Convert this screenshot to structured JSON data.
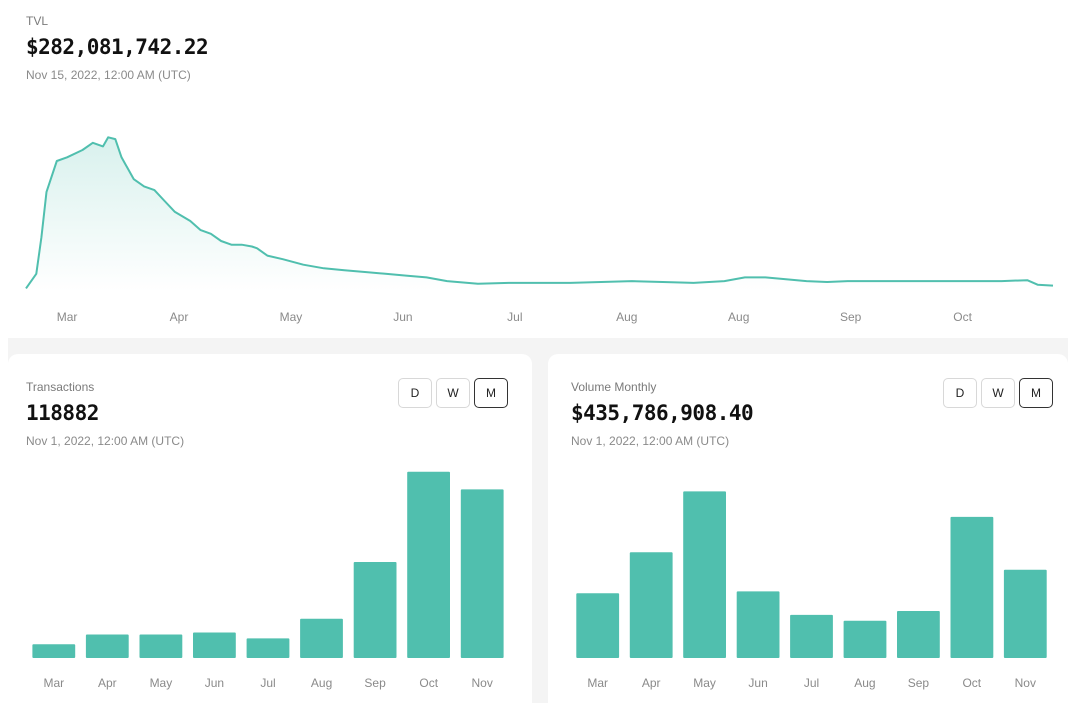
{
  "colors": {
    "accent": "#50bfae",
    "background": "#ffffff",
    "panel_bg": "#f4f4f4"
  },
  "tvl": {
    "label": "TVL",
    "value": "$282,081,742.22",
    "date": "Nov 15, 2022, 12:00 AM (UTC)"
  },
  "transactions": {
    "label": "Transactions",
    "value": "118882",
    "date": "Nov 1, 2022, 12:00 AM (UTC)",
    "buttons": [
      "D",
      "W",
      "M"
    ],
    "active_button": "M"
  },
  "volume": {
    "label": "Volume Monthly",
    "value": "$435,786,908.40",
    "date": "Nov 1, 2022, 12:00 AM (UTC)",
    "buttons": [
      "D",
      "W",
      "M"
    ],
    "active_button": "M"
  },
  "chart_data": [
    {
      "type": "area",
      "series_key": "tvl",
      "x_ticks": [
        "Mar",
        "Apr",
        "May",
        "Jun",
        "Jul",
        "Aug",
        "Aug",
        "Sep",
        "Oct"
      ],
      "y_range": [
        0,
        1
      ],
      "grid": false,
      "points": [
        [
          0,
          0.02
        ],
        [
          0.01,
          0.1
        ],
        [
          0.015,
          0.3
        ],
        [
          0.02,
          0.55
        ],
        [
          0.03,
          0.72
        ],
        [
          0.04,
          0.74
        ],
        [
          0.055,
          0.78
        ],
        [
          0.065,
          0.82
        ],
        [
          0.075,
          0.8
        ],
        [
          0.08,
          0.85
        ],
        [
          0.087,
          0.84
        ],
        [
          0.093,
          0.74
        ],
        [
          0.097,
          0.7
        ],
        [
          0.105,
          0.62
        ],
        [
          0.115,
          0.58
        ],
        [
          0.125,
          0.56
        ],
        [
          0.135,
          0.5
        ],
        [
          0.145,
          0.44
        ],
        [
          0.16,
          0.39
        ],
        [
          0.17,
          0.34
        ],
        [
          0.18,
          0.32
        ],
        [
          0.19,
          0.28
        ],
        [
          0.2,
          0.26
        ],
        [
          0.21,
          0.26
        ],
        [
          0.22,
          0.25
        ],
        [
          0.225,
          0.24
        ],
        [
          0.235,
          0.2
        ],
        [
          0.25,
          0.18
        ],
        [
          0.27,
          0.15
        ],
        [
          0.29,
          0.13
        ],
        [
          0.31,
          0.12
        ],
        [
          0.33,
          0.11
        ],
        [
          0.35,
          0.1
        ],
        [
          0.37,
          0.09
        ],
        [
          0.39,
          0.08
        ],
        [
          0.41,
          0.06
        ],
        [
          0.44,
          0.045
        ],
        [
          0.47,
          0.05
        ],
        [
          0.5,
          0.05
        ],
        [
          0.53,
          0.05
        ],
        [
          0.56,
          0.055
        ],
        [
          0.59,
          0.06
        ],
        [
          0.62,
          0.055
        ],
        [
          0.65,
          0.05
        ],
        [
          0.68,
          0.06
        ],
        [
          0.7,
          0.08
        ],
        [
          0.72,
          0.08
        ],
        [
          0.74,
          0.07
        ],
        [
          0.76,
          0.06
        ],
        [
          0.78,
          0.055
        ],
        [
          0.8,
          0.06
        ],
        [
          0.83,
          0.06
        ],
        [
          0.86,
          0.06
        ],
        [
          0.89,
          0.06
        ],
        [
          0.92,
          0.06
        ],
        [
          0.95,
          0.06
        ],
        [
          0.975,
          0.065
        ],
        [
          0.985,
          0.04
        ],
        [
          1,
          0.035
        ]
      ]
    },
    {
      "type": "bar",
      "series_key": "transactions",
      "categories": [
        "Mar",
        "Apr",
        "May",
        "Jun",
        "Jul",
        "Aug",
        "Sep",
        "Oct",
        "Nov"
      ],
      "values": [
        7,
        12,
        12,
        13,
        10,
        20,
        49,
        95,
        86
      ],
      "ylim": [
        0,
        100
      ],
      "grid": false
    },
    {
      "type": "bar",
      "series_key": "volume",
      "categories": [
        "Mar",
        "Apr",
        "May",
        "Jun",
        "Jul",
        "Aug",
        "Sep",
        "Oct",
        "Nov"
      ],
      "values": [
        33,
        54,
        85,
        34,
        22,
        19,
        24,
        72,
        45
      ],
      "ylim": [
        0,
        100
      ],
      "grid": false
    }
  ]
}
